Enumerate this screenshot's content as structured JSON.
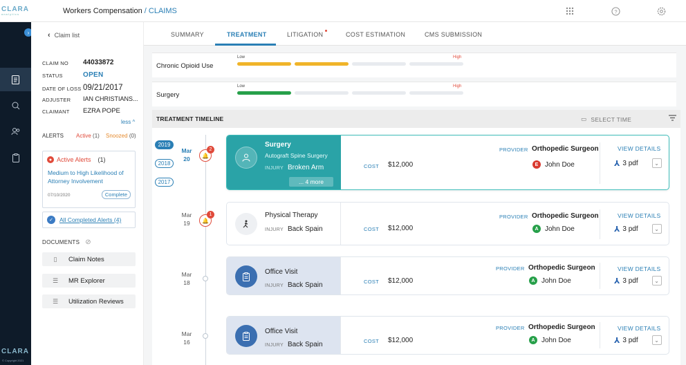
{
  "app": {
    "logo_text": "CLARA",
    "logo_sub": "analytics",
    "title": "Workers Compensation",
    "breadcrumb": "/ CLAIMS",
    "copyright": "© Copyright 2021"
  },
  "top_icons": [
    "grid-icon",
    "help-icon",
    "gear-icon"
  ],
  "rail": {
    "items": [
      "document-icon",
      "search-person-icon",
      "people-icon",
      "clipboard-icon"
    ],
    "active_index": 0
  },
  "claim": {
    "back_label": "Claim list",
    "fields": [
      {
        "label": "CLAIM NO",
        "value": "44033872"
      },
      {
        "label": "STATUS",
        "value": "OPEN"
      },
      {
        "label": "DATE OF LOSS",
        "value": "09/21/2017"
      },
      {
        "label": "ADJUSTER",
        "value": "IAN CHRISTIANS..."
      },
      {
        "label": "CLAIMANT",
        "value": "EZRA POPE"
      }
    ],
    "less_label": "less ^",
    "alerts_label": "ALERTS",
    "alerts_active_label": "Active",
    "alerts_active_count": "(1)",
    "alerts_snoozed_label": "Snoozed",
    "alerts_snoozed_count": "(0)",
    "alert_card": {
      "title": "Active Alerts",
      "count": "(1)",
      "text": "Medium to High Likelihood of Attorney Involvement",
      "date": "07/10/2020",
      "button": "Complete"
    },
    "completed_alerts": "All Completed Alerts  (4)",
    "documents_label": "DOCUMENTS",
    "documents": [
      "Claim Notes",
      "MR Explorer",
      "Utilization Reviews"
    ]
  },
  "tabs": [
    {
      "label": "SUMMARY"
    },
    {
      "label": "TREATMENT"
    },
    {
      "label": "LITIGATION"
    },
    {
      "label": "COST ESTIMATION"
    },
    {
      "label": "CMS SUBMISSION"
    }
  ],
  "active_tab": "TREATMENT",
  "risks": [
    {
      "label": "Chronic Opioid Use",
      "low": "Low",
      "high": "High",
      "level": 2,
      "color": "#f0b429"
    },
    {
      "label": "Surgery",
      "low": "Low",
      "high": "High",
      "level": 1,
      "color": "#27a04a"
    }
  ],
  "treatment_timeline": {
    "title": "TREATMENT TIMELINE",
    "select_time": "SELECT TIME",
    "years": [
      "2019",
      "2018",
      "2017"
    ],
    "active_year": "2019"
  },
  "events": [
    {
      "month": "Mar",
      "day": "20",
      "alerts": "2",
      "title": "Surgery",
      "subtitle": "Autograft  Spine Surgery",
      "injury_label": "INJURY",
      "injury": "Broken Arm",
      "more": "... 4 more",
      "cost_label": "COST",
      "cost": "$12,000",
      "provider_label": "PROVIDER",
      "provider": "Orthopedic Surgeon",
      "doctor": "John Doe",
      "doctor_initial": "E",
      "doctor_color": "#d93a2f",
      "view_details": "VIEW DETAILS",
      "pdf": "3 pdf"
    },
    {
      "month": "Mar",
      "day": "19",
      "alerts": "1",
      "title": "Physical Therapy",
      "injury_label": "INJURY",
      "injury": "Back Spain",
      "cost_label": "COST",
      "cost": "$12,000",
      "provider_label": "PROVIDER",
      "provider": "Orthopedic Surgeon",
      "doctor": "John Doe",
      "doctor_initial": "A",
      "doctor_color": "#27a04a",
      "view_details": "VIEW DETAILS",
      "pdf": "3 pdf"
    },
    {
      "month": "Mar",
      "day": "18",
      "title": "Office Visit",
      "injury_label": "INJURY",
      "injury": "Back Spain",
      "cost_label": "COST",
      "cost": "$12,000",
      "provider_label": "PROVIDER",
      "provider": "Orthopedic Surgeon",
      "doctor": "John Doe",
      "doctor_initial": "A",
      "doctor_color": "#27a04a",
      "view_details": "VIEW DETAILS",
      "pdf": "3 pdf"
    },
    {
      "month": "Mar",
      "day": "16",
      "title": "Office Visit",
      "injury_label": "INJURY",
      "injury": "Back Spain",
      "cost_label": "COST",
      "cost": "$12,000",
      "provider_label": "PROVIDER",
      "provider": "Orthopedic Surgeon",
      "doctor": "John Doe",
      "doctor_initial": "A",
      "doctor_color": "#27a04a",
      "view_details": "VIEW DETAILS",
      "pdf": "3 pdf"
    }
  ]
}
